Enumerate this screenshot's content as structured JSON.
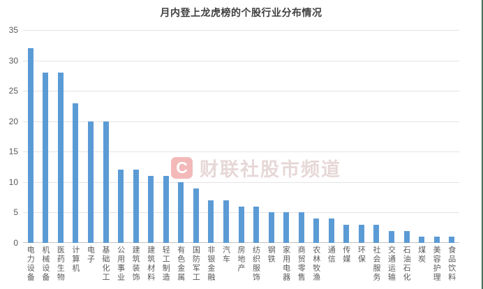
{
  "chart_data": {
    "type": "bar",
    "title": "月内登上龙虎榜的个股行业分布情况",
    "categories": [
      "电力设备",
      "机械设备",
      "医药生物",
      "计算机",
      "电子",
      "基础化工",
      "公用事业",
      "建筑装饰",
      "建筑材料",
      "轻工制造",
      "有色金属",
      "国防军工",
      "非银金融",
      "汽车",
      "房地产",
      "纺织服饰",
      "钢铁",
      "家用电器",
      "商贸零售",
      "农林牧渔",
      "通信",
      "传媒",
      "环保",
      "社会服务",
      "交通运输",
      "石油石化",
      "煤炭",
      "美容护理",
      "食品饮料"
    ],
    "values": [
      32,
      28,
      28,
      23,
      20,
      20,
      12,
      12,
      11,
      11,
      10,
      9,
      7,
      7,
      6,
      6,
      5,
      5,
      5,
      4,
      4,
      3,
      3,
      3,
      2,
      2,
      1,
      1,
      1
    ],
    "xlabel": "",
    "ylabel": "",
    "ylim": [
      0,
      35
    ],
    "ytick_step": 5,
    "grid": "horizontal",
    "legend": "none"
  },
  "watermark": {
    "badge": "C",
    "text": "财联社股市频道"
  },
  "colors": {
    "bar": "#5B9BD5",
    "title": "#3f3f3f",
    "axis_label": "#595959",
    "gridline": "#e3e3e3",
    "baseline": "#c3c3c3",
    "watermark_badge_bg": "#f3b9b9",
    "watermark_badge_fg": "#ffffff",
    "watermark_text": "#e7d8d8",
    "window_border": "#46705a"
  }
}
